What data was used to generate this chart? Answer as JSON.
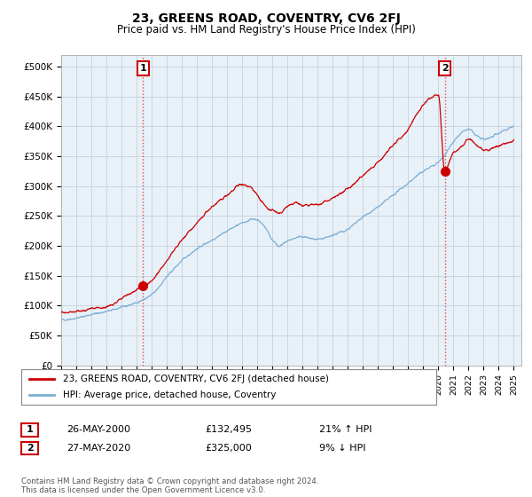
{
  "title": "23, GREENS ROAD, COVENTRY, CV6 2FJ",
  "subtitle": "Price paid vs. HM Land Registry's House Price Index (HPI)",
  "title_fontsize": 10,
  "subtitle_fontsize": 8.5,
  "ylim": [
    0,
    520000
  ],
  "ytick_labels": [
    "£0",
    "£50K",
    "£100K",
    "£150K",
    "£200K",
    "£250K",
    "£300K",
    "£350K",
    "£400K",
    "£450K",
    "£500K"
  ],
  "background_color": "#ffffff",
  "plot_bg_color": "#e8f0f8",
  "grid_color": "#c0ccd8",
  "red_line_color": "#cc0000",
  "blue_line_color": "#7bafd4",
  "legend_line1": "23, GREENS ROAD, COVENTRY, CV6 2FJ (detached house)",
  "legend_line2": "HPI: Average price, detached house, Coventry",
  "table_row1": [
    "1",
    "26-MAY-2000",
    "£132,495",
    "21% ↑ HPI"
  ],
  "table_row2": [
    "2",
    "27-MAY-2020",
    "£325,000",
    "9% ↓ HPI"
  ],
  "footer": "Contains HM Land Registry data © Crown copyright and database right 2024.\nThis data is licensed under the Open Government Licence v3.0.",
  "xmin": 1995,
  "xmax": 2025.5,
  "sale1_x": 2000.42,
  "sale1_y": 132495,
  "sale2_x": 2020.42,
  "sale2_y": 325000
}
